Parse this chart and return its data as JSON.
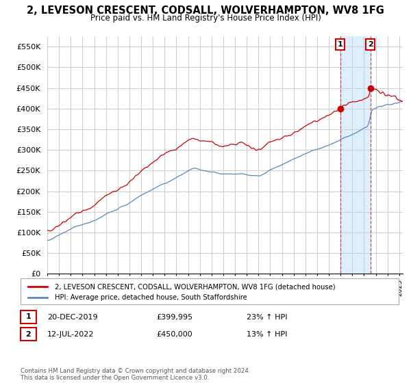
{
  "title": "2, LEVESON CRESCENT, CODSALL, WOLVERHAMPTON, WV8 1FG",
  "subtitle": "Price paid vs. HM Land Registry's House Price Index (HPI)",
  "ylabel_ticks": [
    "£0",
    "£50K",
    "£100K",
    "£150K",
    "£200K",
    "£250K",
    "£300K",
    "£350K",
    "£400K",
    "£450K",
    "£500K",
    "£550K"
  ],
  "ytick_values": [
    0,
    50000,
    100000,
    150000,
    200000,
    250000,
    300000,
    350000,
    400000,
    450000,
    500000,
    550000
  ],
  "xlim_start": 1995.0,
  "xlim_end": 2025.3,
  "ylim": [
    0,
    575000
  ],
  "legend_label_red": "2, LEVESON CRESCENT, CODSALL, WOLVERHAMPTON, WV8 1FG (detached house)",
  "legend_label_blue": "HPI: Average price, detached house, South Staffordshire",
  "sale1_date": "20-DEC-2019",
  "sale1_price": "£399,995",
  "sale1_hpi": "23% ↑ HPI",
  "sale1_year": 2019.97,
  "sale1_value": 399995,
  "sale2_date": "12-JUL-2022",
  "sale2_price": "£450,000",
  "sale2_hpi": "13% ↑ HPI",
  "sale2_year": 2022.54,
  "sale2_value": 450000,
  "red_color": "#cc0000",
  "blue_color": "#5588bb",
  "shade_color": "#ddeeff",
  "footer": "Contains HM Land Registry data © Crown copyright and database right 2024.\nThis data is licensed under the Open Government Licence v3.0.",
  "background_color": "#ffffff",
  "grid_color": "#cccccc"
}
